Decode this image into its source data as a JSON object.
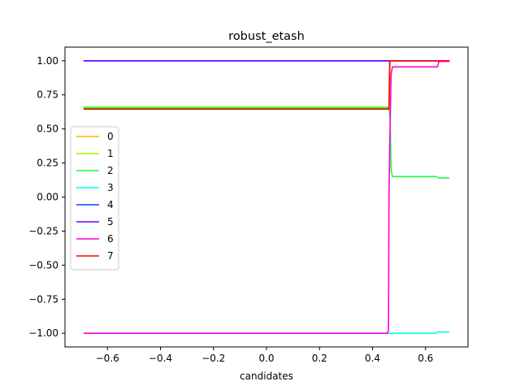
{
  "chart_data": {
    "type": "line",
    "title": "robust_etash",
    "xlabel": "candidates",
    "ylabel": "",
    "xlim": [
      -0.76,
      0.76
    ],
    "ylim": [
      -1.1,
      1.1
    ],
    "xticks": [
      -0.6,
      -0.4,
      -0.2,
      0.0,
      0.2,
      0.4,
      0.6
    ],
    "xtick_labels": [
      "−0.6",
      "−0.4",
      "−0.2",
      "0.0",
      "0.2",
      "0.4",
      "0.6"
    ],
    "yticks": [
      -1.0,
      -0.75,
      -0.5,
      -0.25,
      0.0,
      0.25,
      0.5,
      0.75,
      1.0
    ],
    "ytick_labels": [
      "−1.00",
      "−0.75",
      "−0.50",
      "−0.25",
      "0.00",
      "0.25",
      "0.50",
      "0.75",
      "1.00"
    ],
    "grid": false,
    "legend_position": "center-left",
    "series": [
      {
        "name": "0",
        "color": "#ffb400",
        "x": [
          -0.69,
          0.462,
          0.464,
          0.69
        ],
        "y": [
          0.65,
          0.65,
          1.0,
          1.0
        ]
      },
      {
        "name": "1",
        "color": "#96ff00",
        "x": [
          -0.69,
          0.462,
          0.466,
          0.69
        ],
        "y": [
          0.66,
          0.66,
          1.0,
          1.0
        ]
      },
      {
        "name": "2",
        "color": "#19ff3c",
        "x": [
          -0.69,
          0.462,
          0.466,
          0.47,
          0.475,
          0.64,
          0.65,
          0.69
        ],
        "y": [
          0.655,
          0.655,
          0.58,
          0.2,
          0.15,
          0.15,
          0.14,
          0.14
        ]
      },
      {
        "name": "3",
        "color": "#00ffe6",
        "x": [
          -0.69,
          0.462,
          0.464,
          0.64,
          0.645,
          0.69
        ],
        "y": [
          -1.0,
          -1.0,
          -1.0,
          -1.0,
          -0.99,
          -0.99
        ]
      },
      {
        "name": "4",
        "color": "#0046ff",
        "x": [
          -0.69,
          0.69
        ],
        "y": [
          1.0,
          1.0
        ]
      },
      {
        "name": "5",
        "color": "#6400ff",
        "x": [
          -0.69,
          0.69
        ],
        "y": [
          1.0,
          1.0
        ]
      },
      {
        "name": "6",
        "color": "#ff00d8",
        "x": [
          -0.69,
          0.455,
          0.46,
          0.462,
          0.465,
          0.47,
          0.475,
          0.64,
          0.645,
          0.65,
          0.69
        ],
        "y": [
          -1.0,
          -1.0,
          -0.98,
          0.0,
          0.4,
          0.9,
          0.955,
          0.955,
          0.955,
          0.995,
          0.995
        ]
      },
      {
        "name": "7",
        "color": "#ff0000",
        "x": [
          -0.69,
          0.462,
          0.465,
          0.69
        ],
        "y": [
          0.645,
          0.645,
          1.0,
          1.0
        ]
      }
    ]
  }
}
